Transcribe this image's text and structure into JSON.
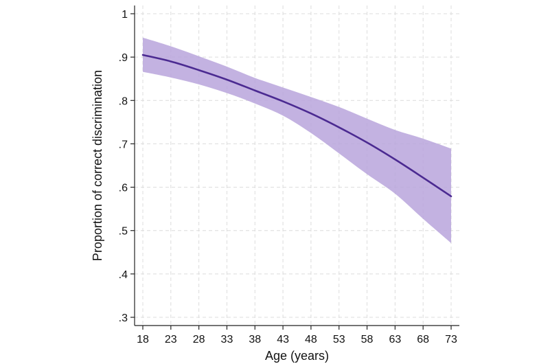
{
  "chart_data": {
    "type": "line",
    "title": "",
    "xlabel": "Age (years)",
    "ylabel": "Proportion of correct discrimination",
    "xlim": [
      18,
      73
    ],
    "ylim": [
      0.3,
      1.0
    ],
    "x_ticks": [
      18,
      23,
      28,
      33,
      38,
      43,
      48,
      53,
      58,
      63,
      68,
      73
    ],
    "x_tick_labels": [
      "18",
      "23",
      "28",
      "33",
      "38",
      "43",
      "48",
      "53",
      "58",
      "63",
      "68",
      "73"
    ],
    "y_ticks": [
      0.3,
      0.4,
      0.5,
      0.6,
      0.7,
      0.8,
      0.9,
      1.0
    ],
    "y_tick_labels": [
      ".3",
      ".4",
      ".5",
      ".6",
      ".7",
      ".8",
      ".9",
      "1"
    ],
    "grid": true,
    "legend": "none",
    "series": [
      {
        "x": [
          18,
          23,
          28,
          33,
          38,
          43,
          48,
          53,
          58,
          63,
          68,
          73
        ],
        "values": [
          0.905,
          0.89,
          0.87,
          0.848,
          0.823,
          0.798,
          0.77,
          0.738,
          0.703,
          0.664,
          0.622,
          0.579
        ],
        "ci_lower": [
          0.866,
          0.853,
          0.837,
          0.817,
          0.793,
          0.765,
          0.725,
          0.678,
          0.63,
          0.585,
          0.527,
          0.471
        ],
        "ci_upper": [
          0.945,
          0.925,
          0.902,
          0.878,
          0.852,
          0.83,
          0.808,
          0.785,
          0.758,
          0.732,
          0.712,
          0.689
        ],
        "color": "#4b2a91",
        "band_color": "#b9a5dc"
      }
    ]
  }
}
